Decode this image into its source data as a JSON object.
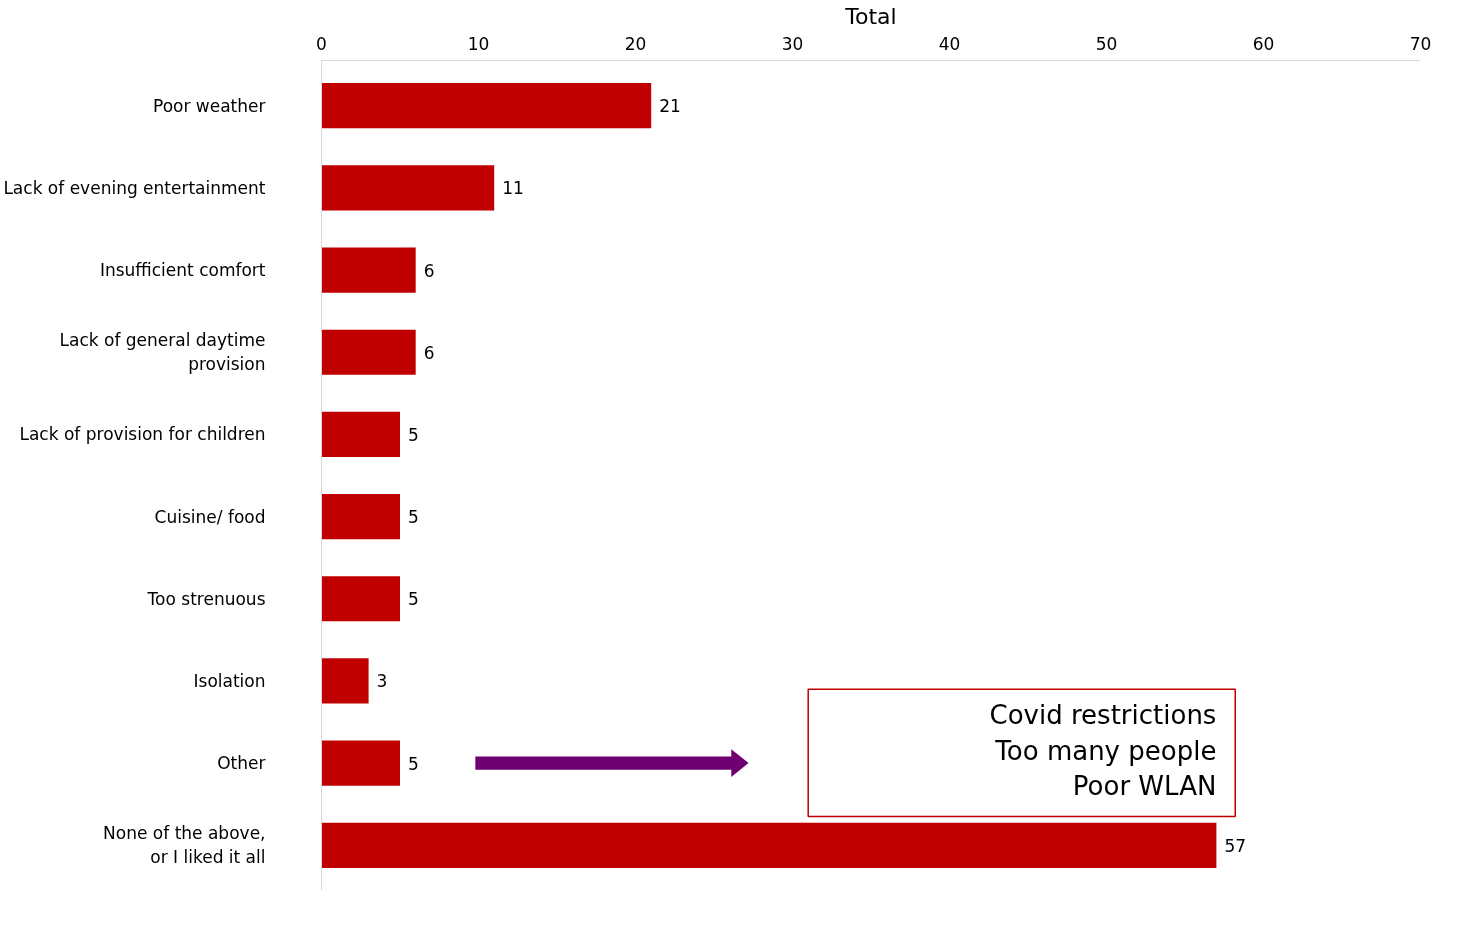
{
  "chart_data": {
    "type": "bar",
    "orientation": "horizontal",
    "xlabel": "Total",
    "categories": [
      "Poor weather",
      "Lack of evening entertainment",
      "Insufficient comfort",
      "Lack of general daytime\nprovision",
      "Lack of provision for children",
      "Cuisine/ food",
      "Too strenuous",
      "Isolation",
      "Other",
      "None of the above,\nor I liked it all"
    ],
    "values": [
      21,
      11,
      6,
      6,
      5,
      5,
      5,
      3,
      5,
      57
    ],
    "color": "#c00000",
    "xlim": [
      0,
      70
    ],
    "xticks": [
      0,
      10,
      20,
      30,
      40,
      50,
      60,
      70
    ],
    "grid": false,
    "data_labels": true,
    "annotations": [
      "Covid restrictions",
      "Too many people",
      "Poor WLAN"
    ]
  }
}
